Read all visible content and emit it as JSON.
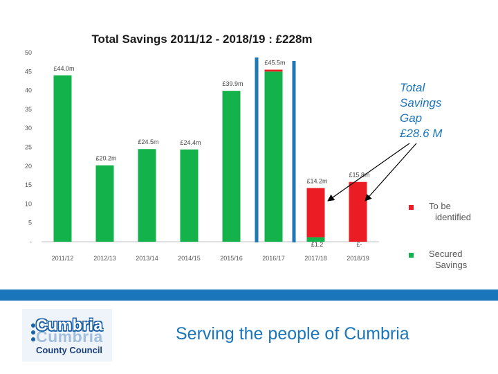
{
  "chart_data": {
    "type": "bar",
    "title": "Total Savings 2011/12  - 2018/19 : £228m",
    "xlabel": "",
    "ylabel": "",
    "ylim": [
      0,
      50
    ],
    "y_ticks": [
      0,
      5,
      10,
      15,
      20,
      25,
      30,
      35,
      40,
      45,
      50
    ],
    "y_tick_labels": [
      "-",
      "5",
      "10",
      "15",
      "20",
      "25",
      "30",
      "35",
      "40",
      "45",
      "50"
    ],
    "categories": [
      "2011/12",
      "2012/13",
      "2013/14",
      "2014/15",
      "2015/16",
      "2016/17",
      "2017/18",
      "2018/19"
    ],
    "series": [
      {
        "name": "Secured Savings",
        "color": "#13b24b",
        "values": [
          44.0,
          20.2,
          24.5,
          24.4,
          39.9,
          45.0,
          1.2,
          0
        ]
      },
      {
        "name": "To be identified",
        "color": "#ec1c24",
        "values": [
          0,
          0,
          0,
          0,
          0,
          0.5,
          13.0,
          15.8
        ]
      }
    ],
    "total_labels": [
      "£44.0m",
      "£20.2m",
      "£24.5m",
      "£24.4m",
      "£39.9m",
      "£45.5m",
      "£14.2m",
      "£15.8m"
    ],
    "secured_labels": [
      "",
      "",
      "",
      "",
      "",
      "",
      "£1.2",
      "£-"
    ],
    "legend_position": "right",
    "annotation": {
      "lines": [
        "Total",
        "Savings",
        "Gap",
        "£28.6 M"
      ],
      "color": "#1b75bb"
    }
  },
  "footer": {
    "logo_name": "Cumbria",
    "logo_subtitle": "County Council",
    "tagline": "Serving the people of Cumbria"
  }
}
